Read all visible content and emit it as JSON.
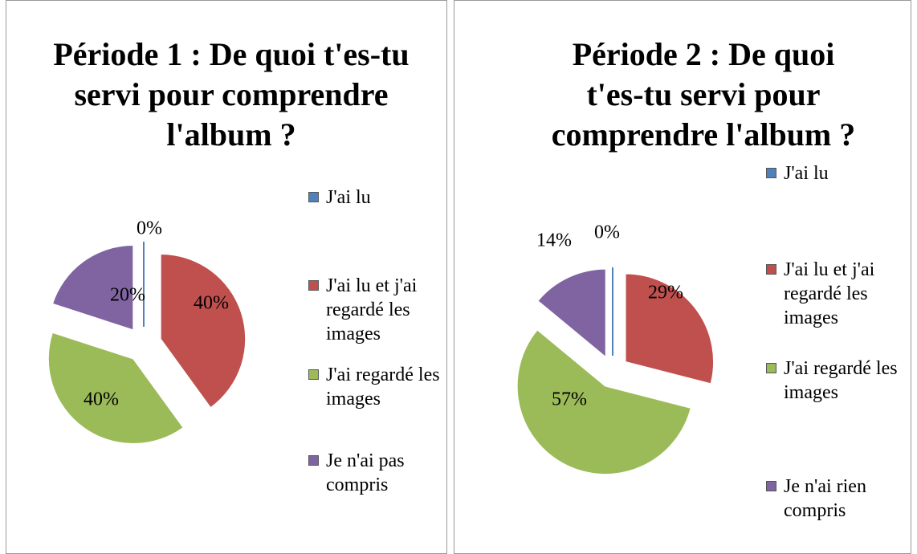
{
  "chart_data": [
    {
      "type": "pie",
      "title": "Période 1 : De quoi t'es-tu servi pour comprendre l'album ?",
      "categories": [
        "J'ai lu",
        "J'ai lu et j'ai regardé les images",
        "J'ai regardé les images",
        "Je n'ai pas compris"
      ],
      "values": [
        0,
        40,
        40,
        20
      ],
      "value_labels": [
        "0%",
        "40%",
        "40%",
        "20%"
      ],
      "colors": [
        "#4f81bd",
        "#c0504d",
        "#9bbb59",
        "#8064a2"
      ],
      "legend": "right"
    },
    {
      "type": "pie",
      "title": "Période 2 : De quoi t'es-tu servi pour comprendre l'album ?",
      "categories": [
        "J'ai lu",
        "J'ai lu et j'ai regardé les images",
        "J'ai regardé les images",
        "Je n'ai rien compris"
      ],
      "values": [
        0,
        29,
        57,
        14
      ],
      "value_labels": [
        "0%",
        "29%",
        "57%",
        "14%"
      ],
      "colors": [
        "#4f81bd",
        "#c0504d",
        "#9bbb59",
        "#8064a2"
      ],
      "legend": "right"
    }
  ]
}
